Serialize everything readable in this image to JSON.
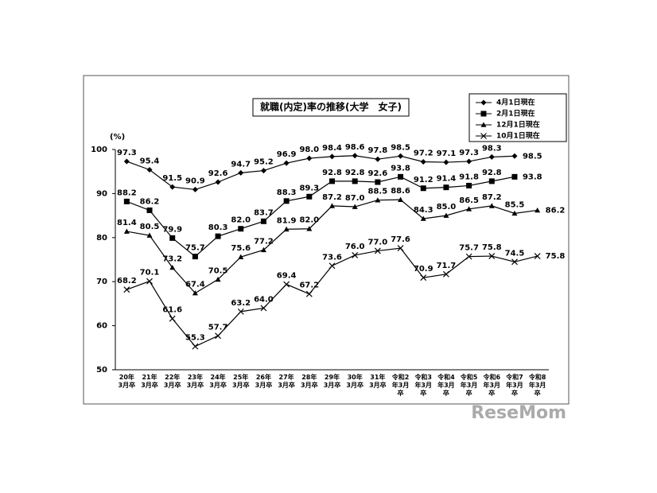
{
  "chart_data": {
    "type": "line",
    "title": "就職(内定)率の推移(大学　女子)",
    "y_unit": "(%)",
    "categories": [
      "20年3月卒",
      "21年3月卒",
      "22年3月卒",
      "23年3月卒",
      "24年3月卒",
      "25年3月卒",
      "26年3月卒",
      "27年3月卒",
      "28年3月卒",
      "29年3月卒",
      "30年3月卒",
      "31年3月卒",
      "令和2年3月卒",
      "令和3年3月卒",
      "令和4年3月卒",
      "令和5年3月卒",
      "令和6年3月卒",
      "令和7年3月卒",
      "令和8年3月卒"
    ],
    "series": [
      {
        "name": "4月1日現在",
        "color": "#000000",
        "marker": "diamond",
        "values": [
          97.3,
          95.4,
          91.5,
          90.9,
          92.6,
          94.7,
          95.2,
          96.9,
          98.0,
          98.4,
          98.6,
          97.8,
          98.5,
          97.2,
          97.1,
          97.3,
          98.3,
          98.5,
          null
        ],
        "value_labels": [
          "97.3",
          "95.4",
          "91.5",
          "90.9",
          "92.6",
          "94.7",
          "95.2",
          "96.9",
          "98.0",
          "98.4",
          "98.6",
          "97.8",
          "98.5",
          "97.2",
          "97.1",
          "97.3",
          "98.3",
          "98.5",
          null
        ]
      },
      {
        "name": "2月1日現在",
        "color": "#000000",
        "marker": "square",
        "values": [
          88.2,
          86.2,
          79.9,
          75.7,
          80.3,
          82.0,
          83.7,
          88.3,
          89.3,
          92.8,
          92.8,
          92.6,
          93.8,
          91.2,
          91.4,
          91.8,
          92.8,
          93.8,
          null
        ],
        "value_labels": [
          "88.2",
          "86.2",
          "79.9",
          "75.7",
          "80.3",
          "82.0",
          "83.7",
          "88.3",
          "89.3",
          "92.8",
          "92.8",
          "92.6",
          "93.8",
          "91.2",
          "91.4",
          "91.8",
          "92.8",
          "93.8",
          null
        ]
      },
      {
        "name": "12月1日現在",
        "color": "#000000",
        "marker": "triangle",
        "values": [
          81.4,
          80.5,
          73.2,
          67.4,
          70.5,
          75.6,
          77.2,
          81.9,
          82.0,
          87.2,
          87.0,
          88.5,
          88.6,
          84.3,
          85.0,
          86.5,
          87.2,
          85.5,
          86.2
        ],
        "value_labels": [
          "81.4",
          "80.5",
          "73.2",
          "67.4",
          "70.5",
          "75.6",
          "77.2",
          "81.9",
          "82.0",
          "87.2",
          "87.0",
          "88.5",
          "88.6",
          "84.3",
          "85.0",
          "86.5",
          "87.2",
          "85.5",
          "86.2"
        ]
      },
      {
        "name": "10月1日現在",
        "color": "#000000",
        "marker": "cross",
        "values": [
          68.2,
          70.1,
          61.6,
          55.3,
          57.7,
          63.2,
          64.0,
          69.4,
          67.2,
          73.6,
          76.0,
          77.0,
          77.6,
          70.9,
          71.7,
          75.7,
          75.8,
          74.5,
          75.8
        ],
        "value_labels": [
          "68.2",
          "70.1",
          "61.6",
          "55.3",
          "57.7",
          "63.2",
          "64.0",
          "69.4",
          "67.2",
          "73.6",
          "76.0",
          "77.0",
          "77.6",
          "70.9",
          "71.7",
          "75.7",
          "75.8",
          "74.5",
          "75.8"
        ]
      }
    ],
    "ylim": [
      50,
      100
    ],
    "yticks": [
      50,
      60,
      70,
      80,
      90,
      100
    ],
    "grid": false,
    "legend": "top-right",
    "watermark": "ReseMom"
  }
}
